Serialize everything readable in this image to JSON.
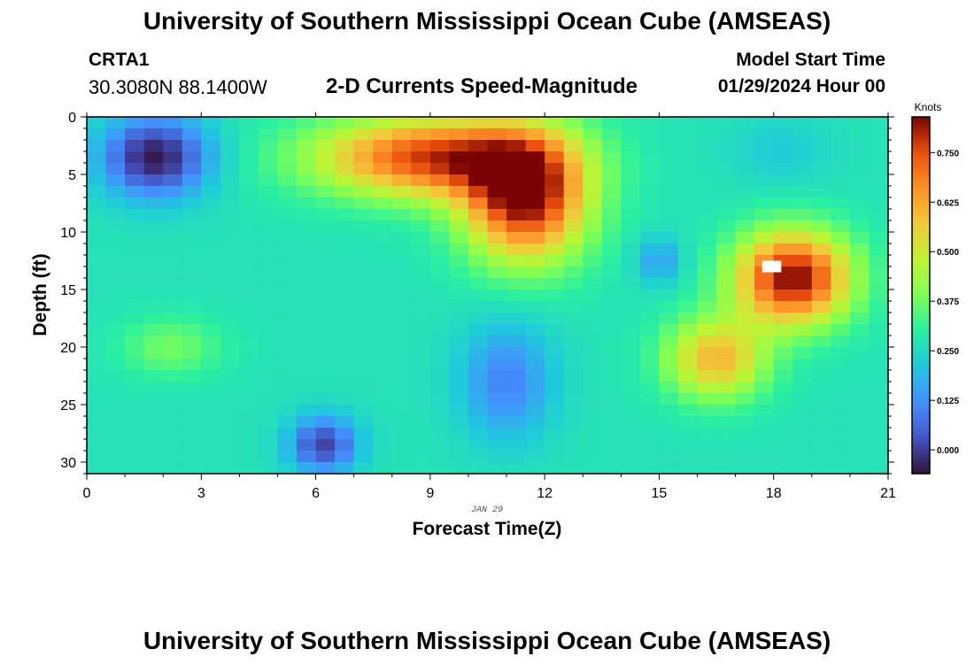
{
  "header": {
    "top_title": "University of Southern Mississippi Ocean Cube (AMSEAS)",
    "bottom_title": "University of Southern Mississippi Ocean Cube (AMSEAS)",
    "station_name": "CRTA1",
    "station_coords": "30.3080N  88.1400W",
    "model_start_label": "Model Start Time",
    "model_start_value": "01/29/2024 Hour 00"
  },
  "chart_data": {
    "type": "heatmap",
    "title": "2-D Currents Speed-Magnitude",
    "xlabel": "Forecast Time(Z)",
    "ylabel": "Depth (ft)",
    "x_date_label": "JAN 29",
    "xlim": [
      0,
      21
    ],
    "ylim": [
      0,
      31
    ],
    "y_inverted": true,
    "x_ticks": [
      0,
      3,
      6,
      9,
      12,
      15,
      18,
      21
    ],
    "x_tick_labels": [
      "0",
      "3",
      "6",
      "9",
      "12",
      "15",
      "18",
      "21"
    ],
    "y_ticks": [
      0,
      5,
      10,
      15,
      20,
      25,
      30
    ],
    "y_tick_labels": [
      "0",
      "5",
      "10",
      "15",
      "20",
      "25",
      "30"
    ],
    "colorbar": {
      "label": "Knots",
      "range": [
        -0.06,
        0.84
      ],
      "ticks": [
        0.0,
        0.125,
        0.25,
        0.375,
        0.5,
        0.625,
        0.75
      ],
      "tick_labels": [
        "0.000",
        "0.125",
        "0.250",
        "0.375",
        "0.500",
        "0.625",
        "0.750"
      ],
      "colormap": "turbo"
    },
    "features": [
      {
        "t": 1.8,
        "d": 3.5,
        "speed": -0.05,
        "sx": 1.4,
        "sy": 3.5
      },
      {
        "t": 2.2,
        "d": 20.0,
        "speed": 0.38,
        "sx": 1.3,
        "sy": 2.5
      },
      {
        "t": 6.2,
        "d": 28.5,
        "speed": 0.01,
        "sx": 0.9,
        "sy": 2.5
      },
      {
        "t": 9.0,
        "d": 3.5,
        "speed": 0.76,
        "sx": 3.0,
        "sy": 3.5
      },
      {
        "t": 11.5,
        "d": 7.0,
        "speed": 0.83,
        "sx": 1.6,
        "sy": 5.5
      },
      {
        "t": 11.0,
        "d": 23.0,
        "speed": 0.1,
        "sx": 1.2,
        "sy": 5.0
      },
      {
        "t": 15.0,
        "d": 12.5,
        "speed": 0.14,
        "sx": 0.6,
        "sy": 2.0
      },
      {
        "t": 18.2,
        "d": 3.0,
        "speed": 0.22,
        "sx": 1.3,
        "sy": 3.0
      },
      {
        "t": 18.5,
        "d": 14.0,
        "speed": 0.84,
        "sx": 1.5,
        "sy": 4.0
      },
      {
        "t": 16.5,
        "d": 21.0,
        "speed": 0.6,
        "sx": 1.3,
        "sy": 3.5
      }
    ],
    "missing_cells": [
      {
        "t0": 17.7,
        "t1": 18.2,
        "d0": 12.5,
        "d1": 13.5
      }
    ]
  }
}
